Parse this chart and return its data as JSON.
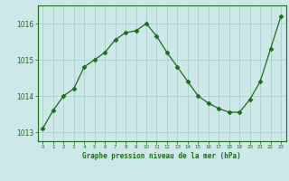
{
  "hours": [
    0,
    1,
    2,
    3,
    4,
    5,
    6,
    7,
    8,
    9,
    10,
    11,
    12,
    13,
    14,
    15,
    16,
    17,
    18,
    19,
    20,
    21,
    22,
    23
  ],
  "pressure": [
    1013.1,
    1013.6,
    1014.0,
    1014.2,
    1014.8,
    1015.0,
    1015.2,
    1015.55,
    1015.75,
    1015.8,
    1016.0,
    1015.65,
    1015.2,
    1014.8,
    1014.4,
    1014.0,
    1013.8,
    1013.65,
    1013.55,
    1013.55,
    1013.9,
    1014.4,
    1015.3,
    1016.2
  ],
  "ylim": [
    1012.75,
    1016.5
  ],
  "yticks": [
    1013,
    1014,
    1015,
    1016
  ],
  "xlabel": "Graphe pression niveau de la mer (hPa)",
  "line_color": "#1a6b1a",
  "marker_color": "#1a6b1a",
  "bg_color": "#cce8e8",
  "grid_color": "#aacece",
  "label_color": "#1a6b1a",
  "tick_color": "#1a6b1a",
  "border_color": "#1a6b1a"
}
